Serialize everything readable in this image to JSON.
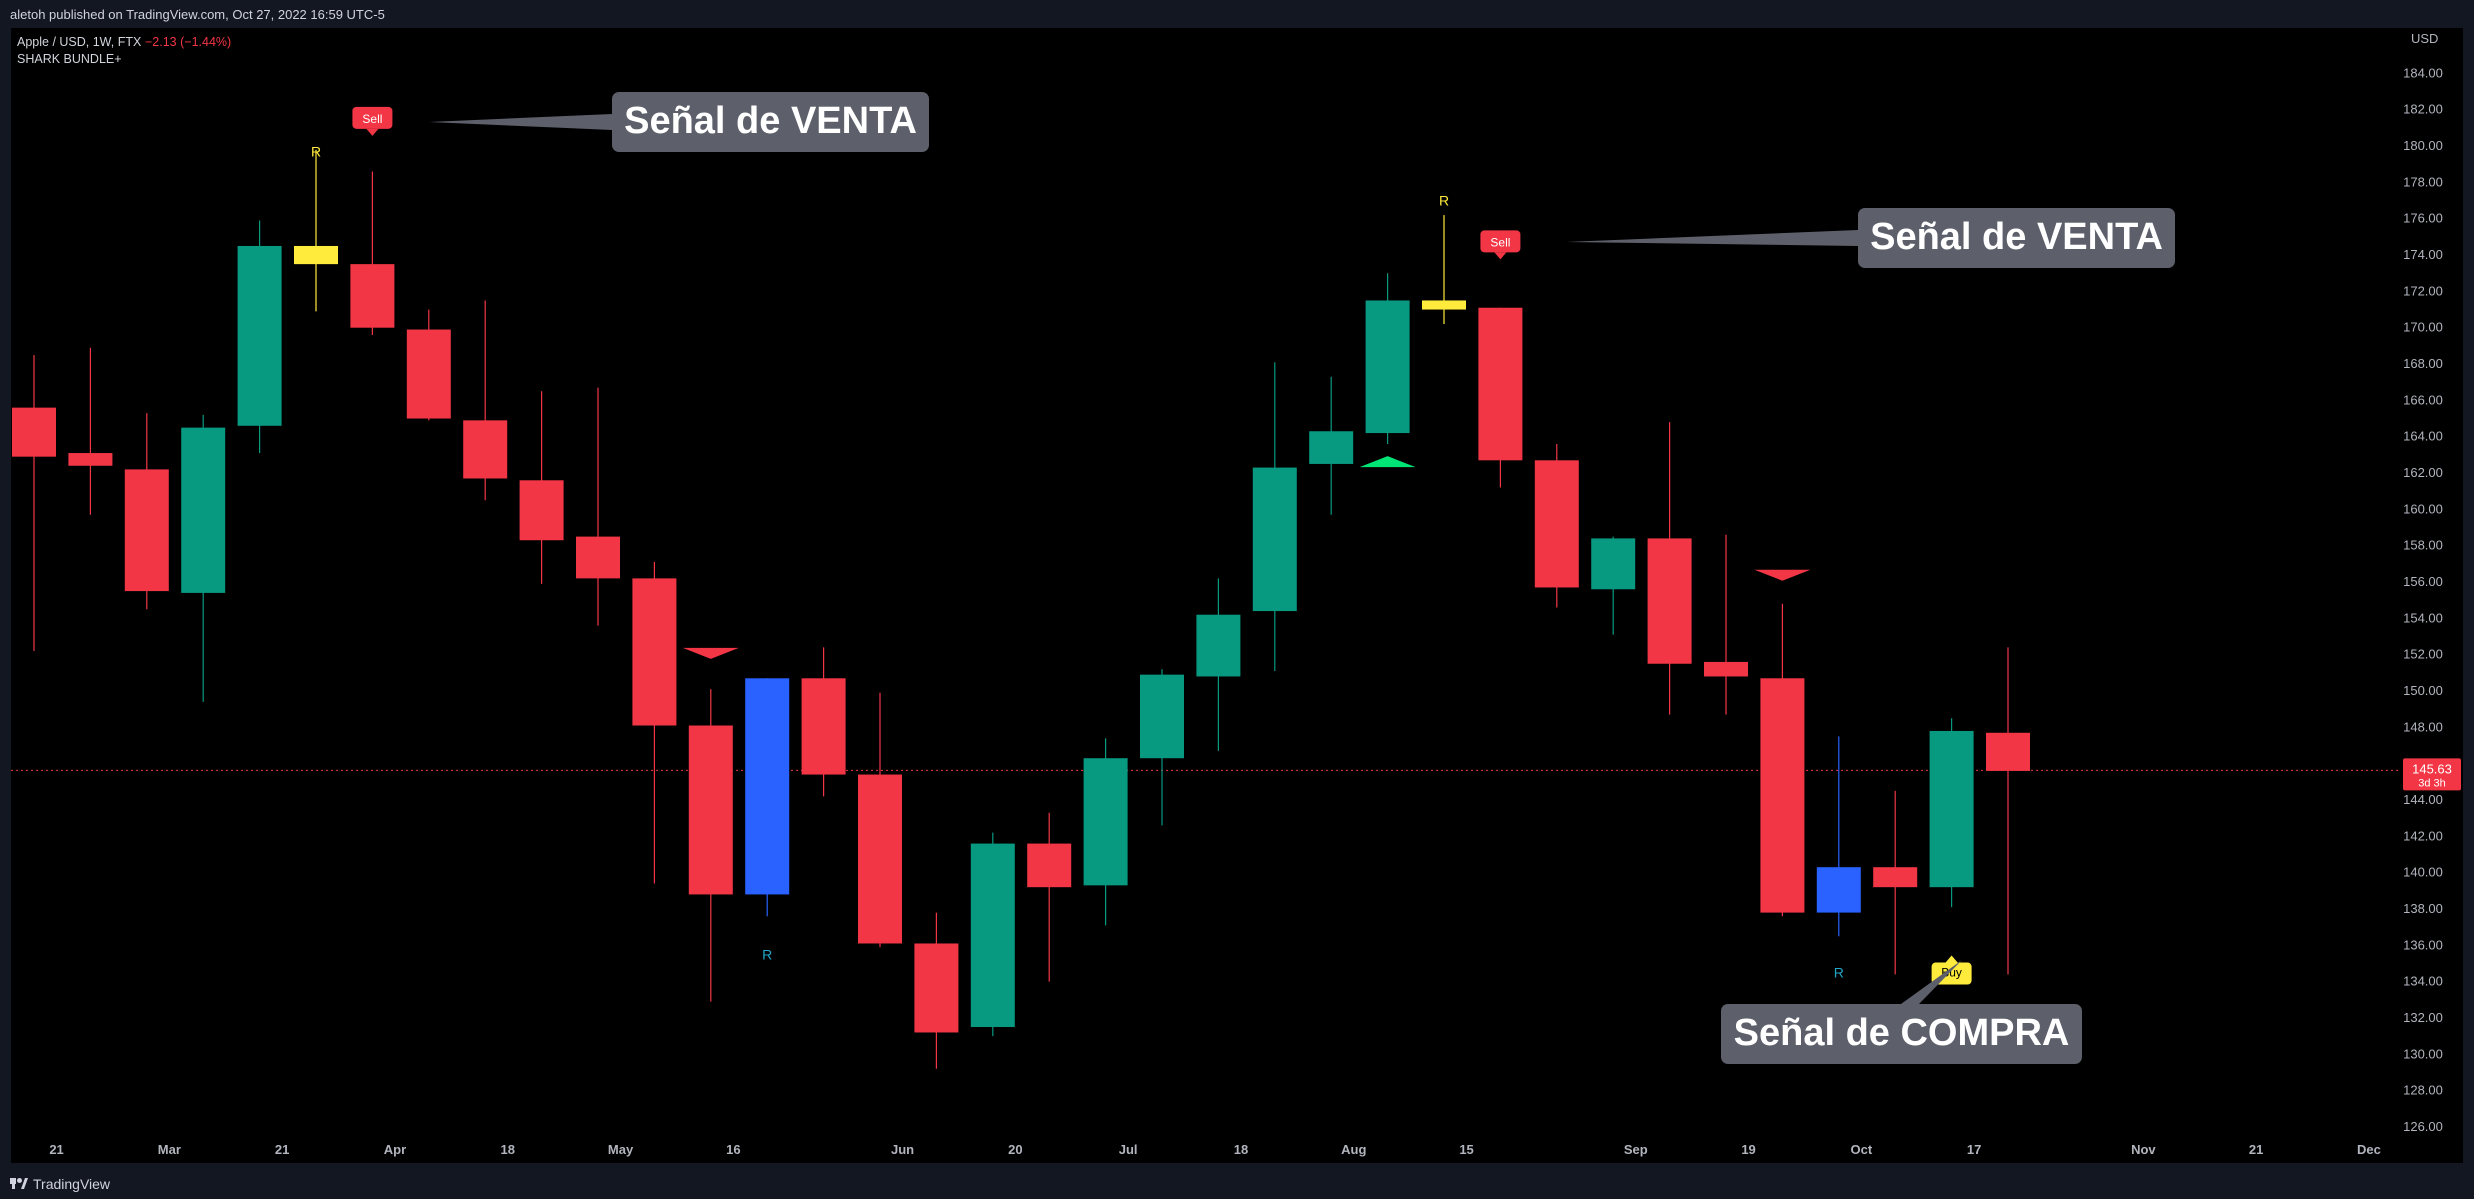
{
  "header": {
    "published_by": "aletoh published on TradingView.com, Oct 27, 2022 16:59 UTC-5"
  },
  "legend": {
    "symbol": "Apple / USD, 1W, FTX",
    "change": "−2.13 (−1.44%)",
    "indicator": "SHARK BUNDLE+"
  },
  "footer": {
    "brand": "TradingView"
  },
  "colors": {
    "up": "#089981",
    "down": "#f23645",
    "blue": "#2962ff",
    "yellow": "#ffeb3b",
    "lime": "#00e676",
    "axis_text": "#b2b5be",
    "label_bg": "#5d606b"
  },
  "chart_data": {
    "type": "candlestick",
    "interval": "1W",
    "currency": "USD",
    "ylim": [
      124.4,
      186.5
    ],
    "y_ticks": [
      126,
      128,
      130,
      132,
      134,
      136,
      138,
      140,
      142,
      144,
      146,
      148,
      150,
      152,
      154,
      156,
      158,
      160,
      162,
      164,
      166,
      168,
      170,
      172,
      174,
      176,
      178,
      180,
      182,
      184
    ],
    "y_tick_labels": [
      "126.00",
      "128.00",
      "130.00",
      "132.00",
      "134.00",
      "136.00",
      "138.00",
      "140.00",
      "142.00",
      "144.00",
      "146.00",
      "148.00",
      "150.00",
      "152.00",
      "154.00",
      "156.00",
      "158.00",
      "160.00",
      "162.00",
      "164.00",
      "166.00",
      "168.00",
      "170.00",
      "172.00",
      "174.00",
      "176.00",
      "178.00",
      "180.00",
      "182.00",
      "184.00"
    ],
    "current_price": 145.63,
    "current_price_label": "145.63",
    "countdown_label": "3d 3h",
    "x_labels": [
      {
        "i": 0.4,
        "label": "21"
      },
      {
        "i": 2.4,
        "label": "Mar"
      },
      {
        "i": 4.4,
        "label": "21"
      },
      {
        "i": 6.4,
        "label": "Apr"
      },
      {
        "i": 8.4,
        "label": "18"
      },
      {
        "i": 10.4,
        "label": "May"
      },
      {
        "i": 12.4,
        "label": "16"
      },
      {
        "i": 15.4,
        "label": "Jun"
      },
      {
        "i": 17.4,
        "label": "20"
      },
      {
        "i": 19.4,
        "label": "Jul"
      },
      {
        "i": 21.4,
        "label": "18"
      },
      {
        "i": 23.4,
        "label": "Aug"
      },
      {
        "i": 25.4,
        "label": "15"
      },
      {
        "i": 28.4,
        "label": "Sep"
      },
      {
        "i": 30.4,
        "label": "19"
      },
      {
        "i": 32.4,
        "label": "Oct"
      },
      {
        "i": 34.4,
        "label": "17"
      },
      {
        "i": 37.4,
        "label": "Nov"
      },
      {
        "i": 39.4,
        "label": "21"
      },
      {
        "i": 41.4,
        "label": "Dec"
      }
    ],
    "candles": [
      {
        "o": 165.6,
        "h": 168.5,
        "l": 152.2,
        "c": 162.9,
        "color": "down"
      },
      {
        "o": 163.1,
        "h": 168.9,
        "l": 159.7,
        "c": 162.4,
        "color": "down"
      },
      {
        "o": 162.2,
        "h": 165.3,
        "l": 154.5,
        "c": 155.5,
        "color": "down"
      },
      {
        "o": 155.4,
        "h": 165.2,
        "l": 149.4,
        "c": 164.5,
        "color": "up"
      },
      {
        "o": 164.6,
        "h": 175.9,
        "l": 163.1,
        "c": 174.5,
        "color": "up"
      },
      {
        "o": 174.5,
        "h": 179.8,
        "l": 170.9,
        "c": 173.5,
        "color": "yellow"
      },
      {
        "o": 173.5,
        "h": 178.6,
        "l": 169.6,
        "c": 170.0,
        "color": "down"
      },
      {
        "o": 169.9,
        "h": 171.0,
        "l": 164.9,
        "c": 165.0,
        "color": "down"
      },
      {
        "o": 164.9,
        "h": 171.5,
        "l": 160.5,
        "c": 161.7,
        "color": "down"
      },
      {
        "o": 161.6,
        "h": 166.5,
        "l": 155.9,
        "c": 158.3,
        "color": "down"
      },
      {
        "o": 158.5,
        "h": 166.7,
        "l": 153.6,
        "c": 156.2,
        "color": "down"
      },
      {
        "o": 156.2,
        "h": 157.1,
        "l": 139.4,
        "c": 148.1,
        "color": "down"
      },
      {
        "o": 148.1,
        "h": 150.1,
        "l": 132.9,
        "c": 138.8,
        "color": "down"
      },
      {
        "o": 138.8,
        "h": 150.7,
        "l": 137.6,
        "c": 150.7,
        "color": "blue"
      },
      {
        "o": 150.7,
        "h": 152.4,
        "l": 144.2,
        "c": 145.4,
        "color": "down"
      },
      {
        "o": 145.4,
        "h": 149.9,
        "l": 135.9,
        "c": 136.1,
        "color": "down"
      },
      {
        "o": 136.1,
        "h": 137.8,
        "l": 129.2,
        "c": 131.2,
        "color": "down"
      },
      {
        "o": 131.5,
        "h": 142.2,
        "l": 131.0,
        "c": 141.6,
        "color": "up"
      },
      {
        "o": 141.6,
        "h": 143.3,
        "l": 134.0,
        "c": 139.2,
        "color": "down"
      },
      {
        "o": 139.3,
        "h": 147.4,
        "l": 137.1,
        "c": 146.3,
        "color": "up"
      },
      {
        "o": 146.3,
        "h": 151.2,
        "l": 142.6,
        "c": 150.9,
        "color": "up"
      },
      {
        "o": 150.8,
        "h": 156.2,
        "l": 146.7,
        "c": 154.2,
        "color": "up"
      },
      {
        "o": 154.4,
        "h": 168.1,
        "l": 151.1,
        "c": 162.3,
        "color": "up"
      },
      {
        "o": 162.5,
        "h": 167.3,
        "l": 159.7,
        "c": 164.3,
        "color": "up"
      },
      {
        "o": 164.2,
        "h": 173.0,
        "l": 163.6,
        "c": 171.5,
        "color": "up"
      },
      {
        "o": 171.5,
        "h": 176.2,
        "l": 170.2,
        "c": 171.0,
        "color": "yellow"
      },
      {
        "o": 171.1,
        "h": 171.1,
        "l": 161.2,
        "c": 162.7,
        "color": "down"
      },
      {
        "o": 162.7,
        "h": 163.6,
        "l": 154.6,
        "c": 155.7,
        "color": "down"
      },
      {
        "o": 155.6,
        "h": 158.5,
        "l": 153.1,
        "c": 158.4,
        "color": "up"
      },
      {
        "o": 158.4,
        "h": 164.8,
        "l": 148.7,
        "c": 151.5,
        "color": "down"
      },
      {
        "o": 151.6,
        "h": 158.6,
        "l": 148.7,
        "c": 150.8,
        "color": "down"
      },
      {
        "o": 150.7,
        "h": 154.8,
        "l": 137.6,
        "c": 137.8,
        "color": "down"
      },
      {
        "o": 137.8,
        "h": 147.5,
        "l": 136.5,
        "c": 140.3,
        "color": "blue"
      },
      {
        "o": 140.3,
        "h": 144.5,
        "l": 134.4,
        "c": 139.2,
        "color": "down"
      },
      {
        "o": 139.2,
        "h": 148.5,
        "l": 138.1,
        "c": 147.8,
        "color": "up"
      },
      {
        "o": 147.7,
        "h": 152.4,
        "l": 134.4,
        "c": 145.6,
        "color": "down"
      }
    ],
    "markers": [
      {
        "type": "R",
        "i": 5,
        "price": 179.7,
        "color": "yellow"
      },
      {
        "type": "R",
        "i": 13,
        "price": 135.5,
        "color": "teal"
      },
      {
        "type": "R",
        "i": 25,
        "price": 177.0,
        "color": "yellow"
      },
      {
        "type": "R",
        "i": 32,
        "price": 134.5,
        "color": "teal"
      },
      {
        "type": "triangle-down",
        "i": 12,
        "price": 152.1,
        "color": "down"
      },
      {
        "type": "triangle-down",
        "i": 31,
        "price": 156.4,
        "color": "down"
      },
      {
        "type": "triangle-up",
        "i": 24,
        "price": 162.6,
        "color": "lime"
      }
    ],
    "signal_badges": [
      {
        "text": "Sell",
        "i": 6,
        "price": 181.5,
        "kind": "sell"
      },
      {
        "text": "Sell",
        "i": 26,
        "price": 174.7,
        "kind": "sell"
      },
      {
        "text": "Buy",
        "i": 34,
        "price": 134.5,
        "kind": "buy"
      }
    ],
    "annotations": [
      {
        "text": "Señal de VENTA",
        "kind": "sell"
      },
      {
        "text": "Señal de VENTA",
        "kind": "sell"
      },
      {
        "text": "Señal de COMPRA",
        "kind": "buy"
      }
    ]
  }
}
